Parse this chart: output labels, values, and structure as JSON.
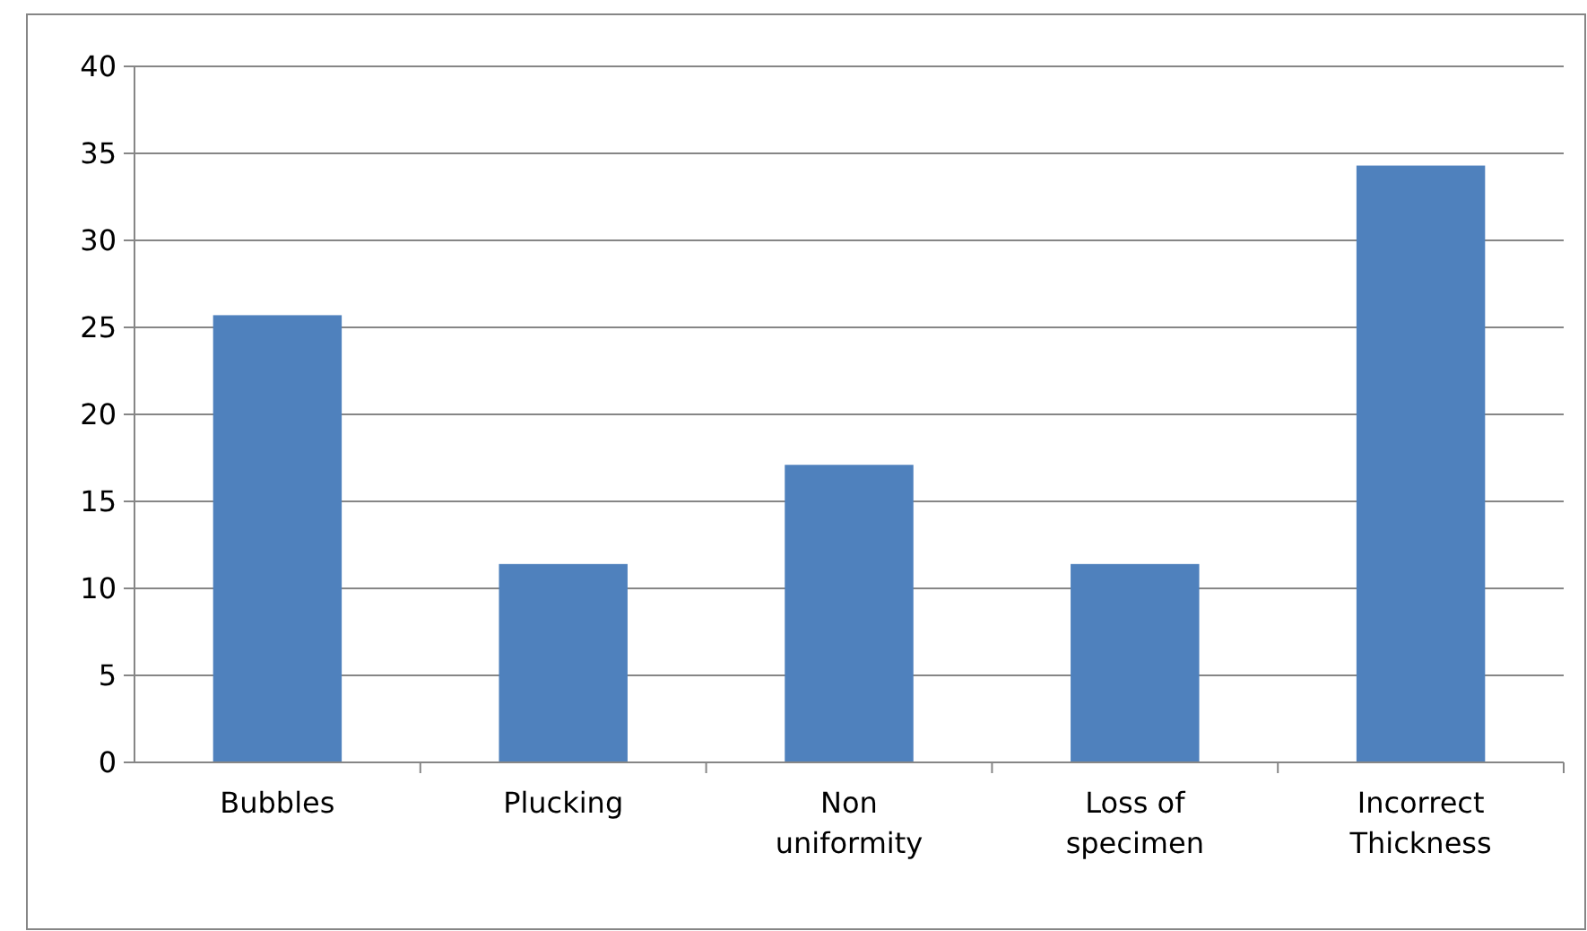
{
  "chart_data": {
    "type": "bar",
    "categories": [
      "Bubbles",
      "Plucking",
      "Non uniformity",
      "Loss of specimen",
      "Incorrect Thickness"
    ],
    "values": [
      25.7,
      11.4,
      17.1,
      11.4,
      34.3
    ],
    "color": "#4f81bd",
    "ylim": [
      0,
      40
    ],
    "yticks": [
      0,
      5,
      10,
      15,
      20,
      25,
      30,
      35,
      40
    ],
    "grid": "y"
  }
}
